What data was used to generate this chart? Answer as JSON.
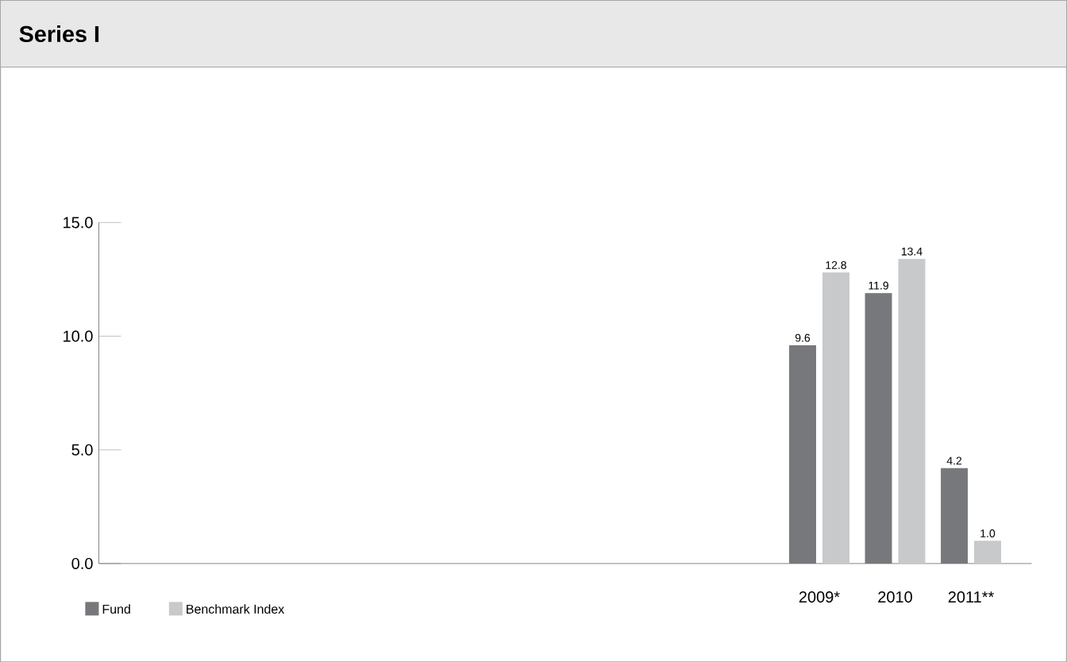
{
  "chart_data": {
    "type": "bar",
    "title": "Series I",
    "categories": [
      null,
      null,
      null,
      null,
      null,
      null,
      null,
      null,
      null,
      "2009*",
      "2010",
      "2011**"
    ],
    "series": [
      {
        "name": "Fund",
        "color": "#77787b",
        "values": [
          null,
          null,
          null,
          null,
          null,
          null,
          null,
          null,
          null,
          9.6,
          11.9,
          4.2
        ],
        "value_labels": [
          null,
          null,
          null,
          null,
          null,
          null,
          null,
          null,
          null,
          "9.6",
          "11.9",
          "4.2"
        ]
      },
      {
        "name": "Benchmark Index",
        "color": "#c8c9cb",
        "values": [
          null,
          null,
          null,
          null,
          null,
          null,
          null,
          null,
          null,
          12.8,
          13.4,
          1.0
        ],
        "value_labels": [
          null,
          null,
          null,
          null,
          null,
          null,
          null,
          null,
          null,
          "12.8",
          "13.4",
          "1.0"
        ]
      }
    ],
    "ylim": [
      0,
      15
    ],
    "yticks": [
      {
        "value": 0,
        "label": "0.0"
      },
      {
        "value": 5,
        "label": "5.0"
      },
      {
        "value": 10,
        "label": "10.0"
      },
      {
        "value": 15,
        "label": "15.0"
      }
    ],
    "legend": "bottom left",
    "grid": false
  }
}
